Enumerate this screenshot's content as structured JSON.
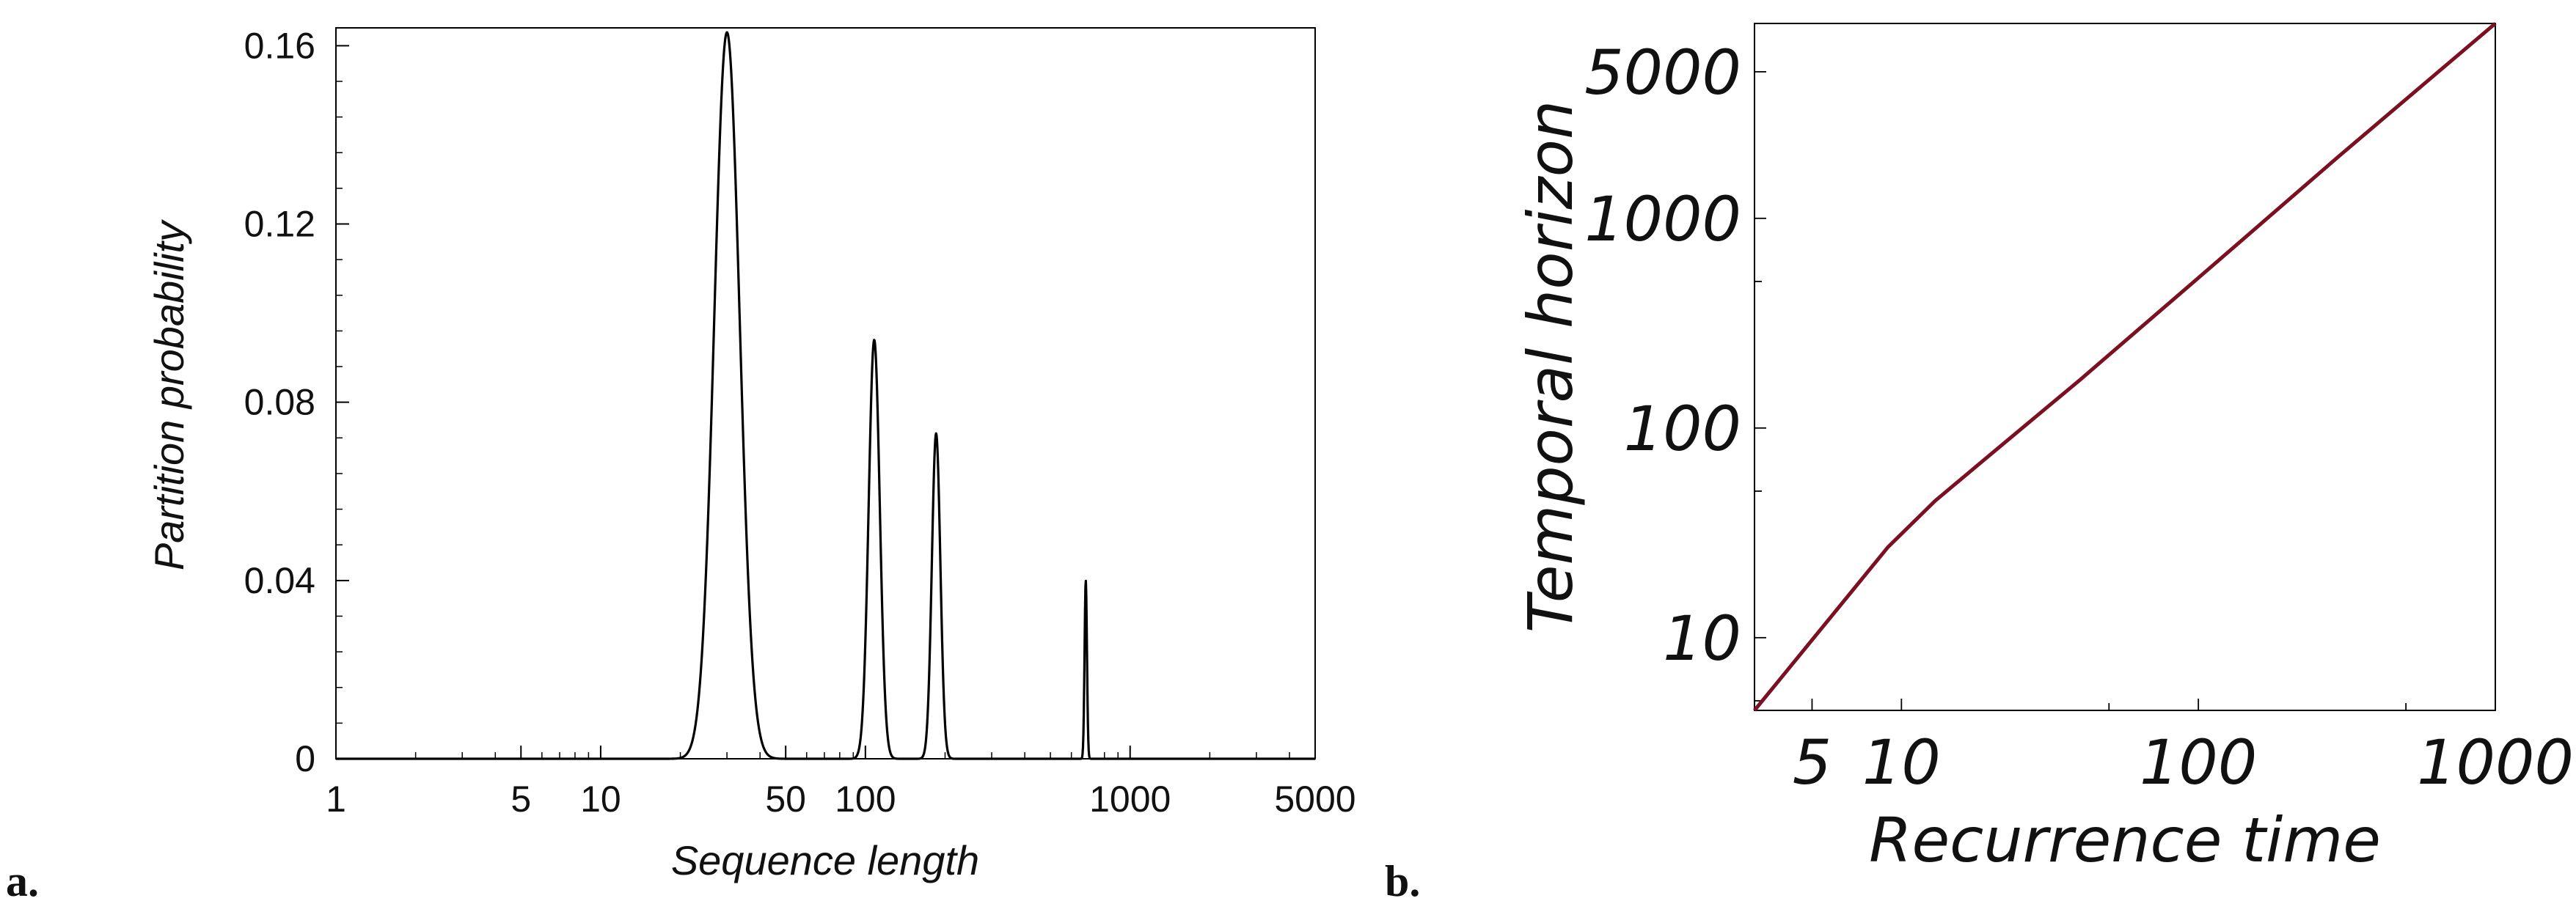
{
  "chart_data": [
    {
      "type": "line",
      "panel_label": "a.",
      "xlabel": "Sequence length",
      "ylabel": "Partition probability",
      "xscale": "log",
      "xlim": [
        1,
        5000
      ],
      "ylim": [
        0,
        0.164
      ],
      "xticks": [
        {
          "value": 1,
          "label": "1"
        },
        {
          "value": 5,
          "label": "5"
        },
        {
          "value": 10,
          "label": "10"
        },
        {
          "value": 50,
          "label": "50"
        },
        {
          "value": 100,
          "label": "100"
        },
        {
          "value": 1000,
          "label": "1000"
        },
        {
          "value": 5000,
          "label": "5000"
        }
      ],
      "yticks": [
        {
          "value": 0,
          "label": "0"
        },
        {
          "value": 0.04,
          "label": "0.04"
        },
        {
          "value": 0.08,
          "label": "0.08"
        },
        {
          "value": 0.12,
          "label": "0.12"
        },
        {
          "value": 0.16,
          "label": "0.16"
        }
      ],
      "grid": false,
      "color": "#000000",
      "peaks": [
        {
          "center": 30,
          "height": 0.163,
          "width_log10": 0.048
        },
        {
          "center": 108,
          "height": 0.094,
          "width_log10": 0.021
        },
        {
          "center": 185,
          "height": 0.073,
          "width_log10": 0.016
        },
        {
          "center": 680,
          "height": 0.04,
          "width_log10": 0.0045
        }
      ]
    },
    {
      "type": "line",
      "panel_label": "b.",
      "xlabel": "Recurrence time",
      "ylabel": "Temporal horizon",
      "xscale": "log",
      "yscale": "log",
      "xlim": [
        3.2,
        1000
      ],
      "ylim": [
        4.5,
        8500
      ],
      "xticks": [
        {
          "value": 5,
          "label": "5"
        },
        {
          "value": 10,
          "label": "10"
        },
        {
          "value": 100,
          "label": "100"
        },
        {
          "value": 1000,
          "label": "1000"
        }
      ],
      "yticks": [
        {
          "value": 10,
          "label": "10"
        },
        {
          "value": 100,
          "label": "100"
        },
        {
          "value": 1000,
          "label": "1000"
        },
        {
          "value": 5000,
          "label": "5000"
        }
      ],
      "grid": false,
      "color": "#7a1020",
      "series": [
        {
          "x": [
            3.2,
            9.0,
            13,
            20,
            40,
            100,
            300,
            1000
          ],
          "y": [
            4.5,
            27,
            45,
            75,
            170,
            520,
            2000,
            8500
          ]
        }
      ]
    }
  ]
}
